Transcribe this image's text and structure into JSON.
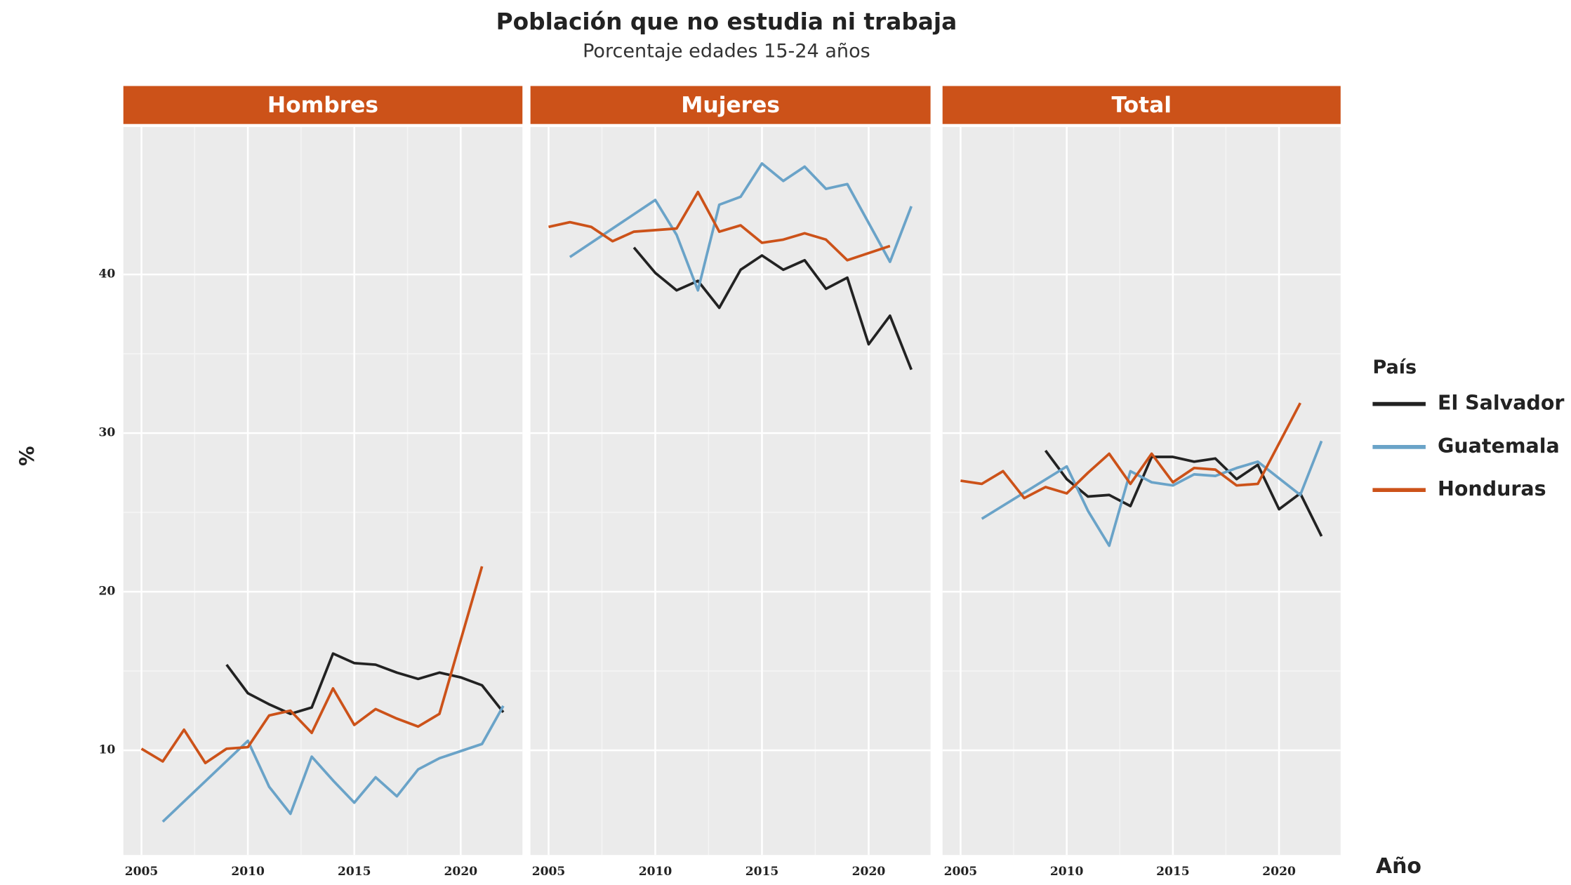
{
  "chart_data": {
    "type": "line",
    "title": "Población que no estudia ni trabaja",
    "subtitle": "Porcentaje edades 15-24 años",
    "xlabel": "Año",
    "ylabel": "%",
    "legend_title": "País",
    "grid": true,
    "xlim": [
      2004.15,
      2022.9
    ],
    "ylim": [
      3.4,
      49.3
    ],
    "xticks": [
      2005,
      2010,
      2015,
      2020
    ],
    "yticks": [
      10,
      20,
      30,
      40
    ],
    "series": [
      {
        "name": "El Salvador",
        "color": "#222222"
      },
      {
        "name": "Guatemala",
        "color": "#6aa3c8"
      },
      {
        "name": "Honduras",
        "color": "#cc5219"
      }
    ],
    "panels": [
      {
        "title": "Hombres",
        "lines": [
          {
            "x": [
              2009,
              2010,
              2011,
              2012,
              2013,
              2014,
              2015,
              2016,
              2017,
              2018,
              2019,
              2020,
              2021,
              2022
            ],
            "values": [
              15.4,
              13.6,
              12.9,
              12.3,
              12.7,
              16.1,
              15.5,
              15.4,
              14.9,
              14.5,
              14.9,
              14.6,
              14.1,
              12.4
            ]
          },
          {
            "x": [
              2006,
              2010,
              2011,
              2012,
              2013,
              2014,
              2015,
              2016,
              2017,
              2018,
              2019,
              2021,
              2022
            ],
            "values": [
              5.5,
              10.6,
              7.7,
              6.0,
              9.6,
              8.1,
              6.7,
              8.3,
              7.1,
              8.8,
              9.5,
              10.4,
              12.8
            ]
          },
          {
            "x": [
              2005,
              2006,
              2007,
              2008,
              2009,
              2010,
              2011,
              2012,
              2013,
              2014,
              2015,
              2016,
              2017,
              2018,
              2019,
              2021
            ],
            "values": [
              10.1,
              9.3,
              11.3,
              9.2,
              10.1,
              10.2,
              12.2,
              12.5,
              11.1,
              13.9,
              11.6,
              12.6,
              12.0,
              11.5,
              12.3,
              21.6
            ]
          }
        ]
      },
      {
        "title": "Mujeres",
        "lines": [
          {
            "x": [
              2009,
              2010,
              2011,
              2012,
              2013,
              2014,
              2015,
              2016,
              2017,
              2018,
              2019,
              2020,
              2021,
              2022
            ],
            "values": [
              41.7,
              40.1,
              39.0,
              39.6,
              37.9,
              40.3,
              41.2,
              40.3,
              40.9,
              39.1,
              39.8,
              35.6,
              37.4,
              34.0
            ]
          },
          {
            "x": [
              2006,
              2010,
              2011,
              2012,
              2013,
              2014,
              2015,
              2016,
              2017,
              2018,
              2019,
              2021,
              2022
            ],
            "values": [
              41.1,
              44.7,
              42.5,
              39.0,
              44.4,
              44.9,
              47.0,
              45.9,
              46.8,
              45.4,
              45.7,
              40.8,
              44.3
            ]
          },
          {
            "x": [
              2005,
              2006,
              2007,
              2008,
              2009,
              2010,
              2011,
              2012,
              2013,
              2014,
              2015,
              2016,
              2017,
              2018,
              2019,
              2021
            ],
            "values": [
              43.0,
              43.3,
              43.0,
              42.1,
              42.7,
              42.8,
              42.9,
              45.2,
              42.7,
              43.1,
              42.0,
              42.2,
              42.6,
              42.2,
              40.9,
              41.8
            ]
          }
        ]
      },
      {
        "title": "Total",
        "lines": [
          {
            "x": [
              2009,
              2010,
              2011,
              2012,
              2013,
              2014,
              2015,
              2016,
              2017,
              2018,
              2019,
              2020,
              2021,
              2022
            ],
            "values": [
              28.9,
              27.1,
              26.0,
              26.1,
              25.4,
              28.5,
              28.5,
              28.2,
              28.4,
              27.1,
              28.0,
              25.2,
              26.2,
              23.5
            ]
          },
          {
            "x": [
              2006,
              2010,
              2011,
              2012,
              2013,
              2014,
              2015,
              2016,
              2017,
              2018,
              2019,
              2021,
              2022
            ],
            "values": [
              24.6,
              27.9,
              25.1,
              22.9,
              27.6,
              26.9,
              26.7,
              27.4,
              27.3,
              27.8,
              28.2,
              26.1,
              29.5
            ]
          },
          {
            "x": [
              2005,
              2006,
              2007,
              2008,
              2009,
              2010,
              2011,
              2012,
              2013,
              2014,
              2015,
              2016,
              2017,
              2018,
              2019,
              2021
            ],
            "values": [
              27.0,
              26.8,
              27.6,
              25.9,
              26.6,
              26.2,
              27.5,
              28.7,
              26.8,
              28.7,
              26.9,
              27.8,
              27.7,
              26.7,
              26.8,
              31.9
            ]
          }
        ]
      }
    ]
  }
}
